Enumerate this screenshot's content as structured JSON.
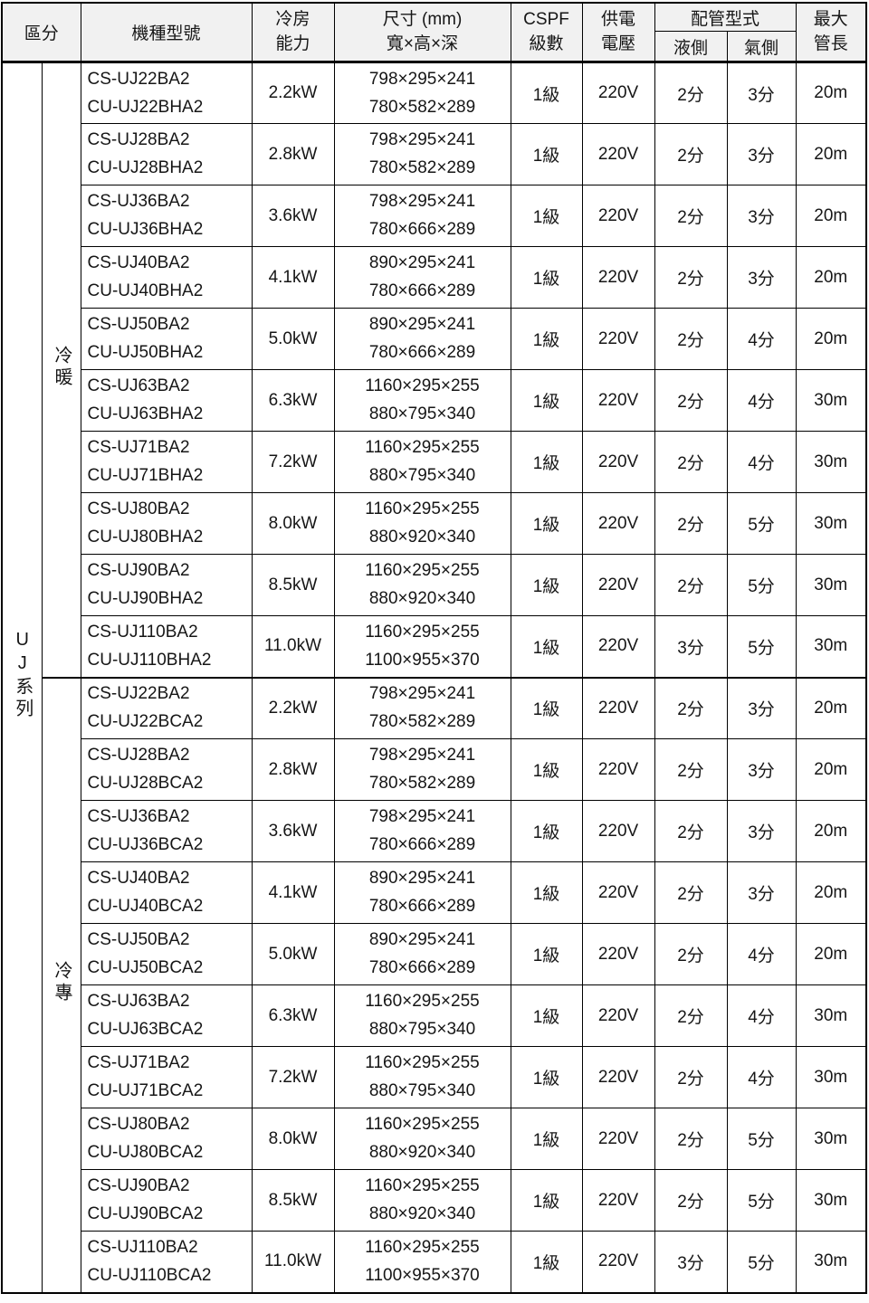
{
  "table": {
    "headers": {
      "category": "區分",
      "model": "機種型號",
      "capacity_l1": "冷房",
      "capacity_l2": "能力",
      "dim_l1": "尺寸 (mm)",
      "dim_l2": "寬×高×深",
      "cspf_l1": "CSPF",
      "cspf_l2": "級數",
      "power_l1": "供電",
      "power_l2": "電壓",
      "piping": "配管型式",
      "liquid": "液側",
      "gas": "氣側",
      "maxlen_l1": "最大",
      "maxlen_l2": "管長"
    },
    "series_label": "UJ系列",
    "colors": {
      "border": "#000000",
      "header_bg": "#f1f1f1",
      "body_bg": "#ffffff",
      "text": "#161616"
    },
    "groups": [
      {
        "label": "冷暖",
        "rows": [
          {
            "indoor_model": "CS-UJ22BA2",
            "outdoor_model": "CU-UJ22BHA2",
            "capacity": "2.2kW",
            "indoor_dim": "798×295×241",
            "outdoor_dim": "780×582×289",
            "cspf": "1級",
            "voltage": "220V",
            "liquid": "2分",
            "gas": "3分",
            "max_length": "20m"
          },
          {
            "indoor_model": "CS-UJ28BA2",
            "outdoor_model": "CU-UJ28BHA2",
            "capacity": "2.8kW",
            "indoor_dim": "798×295×241",
            "outdoor_dim": "780×582×289",
            "cspf": "1級",
            "voltage": "220V",
            "liquid": "2分",
            "gas": "3分",
            "max_length": "20m"
          },
          {
            "indoor_model": "CS-UJ36BA2",
            "outdoor_model": "CU-UJ36BHA2",
            "capacity": "3.6kW",
            "indoor_dim": "798×295×241",
            "outdoor_dim": "780×666×289",
            "cspf": "1級",
            "voltage": "220V",
            "liquid": "2分",
            "gas": "3分",
            "max_length": "20m"
          },
          {
            "indoor_model": "CS-UJ40BA2",
            "outdoor_model": "CU-UJ40BHA2",
            "capacity": "4.1kW",
            "indoor_dim": "890×295×241",
            "outdoor_dim": "780×666×289",
            "cspf": "1級",
            "voltage": "220V",
            "liquid": "2分",
            "gas": "3分",
            "max_length": "20m"
          },
          {
            "indoor_model": "CS-UJ50BA2",
            "outdoor_model": "CU-UJ50BHA2",
            "capacity": "5.0kW",
            "indoor_dim": "890×295×241",
            "outdoor_dim": "780×666×289",
            "cspf": "1級",
            "voltage": "220V",
            "liquid": "2分",
            "gas": "4分",
            "max_length": "20m"
          },
          {
            "indoor_model": "CS-UJ63BA2",
            "outdoor_model": "CU-UJ63BHA2",
            "capacity": "6.3kW",
            "indoor_dim": "1160×295×255",
            "outdoor_dim": "880×795×340",
            "cspf": "1級",
            "voltage": "220V",
            "liquid": "2分",
            "gas": "4分",
            "max_length": "30m"
          },
          {
            "indoor_model": "CS-UJ71BA2",
            "outdoor_model": "CU-UJ71BHA2",
            "capacity": "7.2kW",
            "indoor_dim": "1160×295×255",
            "outdoor_dim": "880×795×340",
            "cspf": "1級",
            "voltage": "220V",
            "liquid": "2分",
            "gas": "4分",
            "max_length": "30m"
          },
          {
            "indoor_model": "CS-UJ80BA2",
            "outdoor_model": "CU-UJ80BHA2",
            "capacity": "8.0kW",
            "indoor_dim": "1160×295×255",
            "outdoor_dim": "880×920×340",
            "cspf": "1級",
            "voltage": "220V",
            "liquid": "2分",
            "gas": "5分",
            "max_length": "30m"
          },
          {
            "indoor_model": "CS-UJ90BA2",
            "outdoor_model": "CU-UJ90BHA2",
            "capacity": "8.5kW",
            "indoor_dim": "1160×295×255",
            "outdoor_dim": "880×920×340",
            "cspf": "1級",
            "voltage": "220V",
            "liquid": "2分",
            "gas": "5分",
            "max_length": "30m"
          },
          {
            "indoor_model": "CS-UJ110BA2",
            "outdoor_model": "CU-UJ110BHA2",
            "capacity": "11.0kW",
            "indoor_dim": "1160×295×255",
            "outdoor_dim": "1100×955×370",
            "cspf": "1級",
            "voltage": "220V",
            "liquid": "3分",
            "gas": "5分",
            "max_length": "30m"
          }
        ]
      },
      {
        "label": "冷專",
        "rows": [
          {
            "indoor_model": "CS-UJ22BA2",
            "outdoor_model": "CU-UJ22BCA2",
            "capacity": "2.2kW",
            "indoor_dim": "798×295×241",
            "outdoor_dim": "780×582×289",
            "cspf": "1級",
            "voltage": "220V",
            "liquid": "2分",
            "gas": "3分",
            "max_length": "20m"
          },
          {
            "indoor_model": "CS-UJ28BA2",
            "outdoor_model": "CU-UJ28BCA2",
            "capacity": "2.8kW",
            "indoor_dim": "798×295×241",
            "outdoor_dim": "780×582×289",
            "cspf": "1級",
            "voltage": "220V",
            "liquid": "2分",
            "gas": "3分",
            "max_length": "20m"
          },
          {
            "indoor_model": "CS-UJ36BA2",
            "outdoor_model": "CU-UJ36BCA2",
            "capacity": "3.6kW",
            "indoor_dim": "798×295×241",
            "outdoor_dim": "780×666×289",
            "cspf": "1級",
            "voltage": "220V",
            "liquid": "2分",
            "gas": "3分",
            "max_length": "20m"
          },
          {
            "indoor_model": "CS-UJ40BA2",
            "outdoor_model": "CU-UJ40BCA2",
            "capacity": "4.1kW",
            "indoor_dim": "890×295×241",
            "outdoor_dim": "780×666×289",
            "cspf": "1級",
            "voltage": "220V",
            "liquid": "2分",
            "gas": "3分",
            "max_length": "20m"
          },
          {
            "indoor_model": "CS-UJ50BA2",
            "outdoor_model": "CU-UJ50BCA2",
            "capacity": "5.0kW",
            "indoor_dim": "890×295×241",
            "outdoor_dim": "780×666×289",
            "cspf": "1級",
            "voltage": "220V",
            "liquid": "2分",
            "gas": "4分",
            "max_length": "20m"
          },
          {
            "indoor_model": "CS-UJ63BA2",
            "outdoor_model": "CU-UJ63BCA2",
            "capacity": "6.3kW",
            "indoor_dim": "1160×295×255",
            "outdoor_dim": "880×795×340",
            "cspf": "1級",
            "voltage": "220V",
            "liquid": "2分",
            "gas": "4分",
            "max_length": "30m"
          },
          {
            "indoor_model": "CS-UJ71BA2",
            "outdoor_model": "CU-UJ71BCA2",
            "capacity": "7.2kW",
            "indoor_dim": "1160×295×255",
            "outdoor_dim": "880×795×340",
            "cspf": "1級",
            "voltage": "220V",
            "liquid": "2分",
            "gas": "4分",
            "max_length": "30m"
          },
          {
            "indoor_model": "CS-UJ80BA2",
            "outdoor_model": "CU-UJ80BCA2",
            "capacity": "8.0kW",
            "indoor_dim": "1160×295×255",
            "outdoor_dim": "880×920×340",
            "cspf": "1級",
            "voltage": "220V",
            "liquid": "2分",
            "gas": "5分",
            "max_length": "30m"
          },
          {
            "indoor_model": "CS-UJ90BA2",
            "outdoor_model": "CU-UJ90BCA2",
            "capacity": "8.5kW",
            "indoor_dim": "1160×295×255",
            "outdoor_dim": "880×920×340",
            "cspf": "1級",
            "voltage": "220V",
            "liquid": "2分",
            "gas": "5分",
            "max_length": "30m"
          },
          {
            "indoor_model": "CS-UJ110BA2",
            "outdoor_model": "CU-UJ110BCA2",
            "capacity": "11.0kW",
            "indoor_dim": "1160×295×255",
            "outdoor_dim": "1100×955×370",
            "cspf": "1級",
            "voltage": "220V",
            "liquid": "3分",
            "gas": "5分",
            "max_length": "30m"
          }
        ]
      }
    ]
  }
}
